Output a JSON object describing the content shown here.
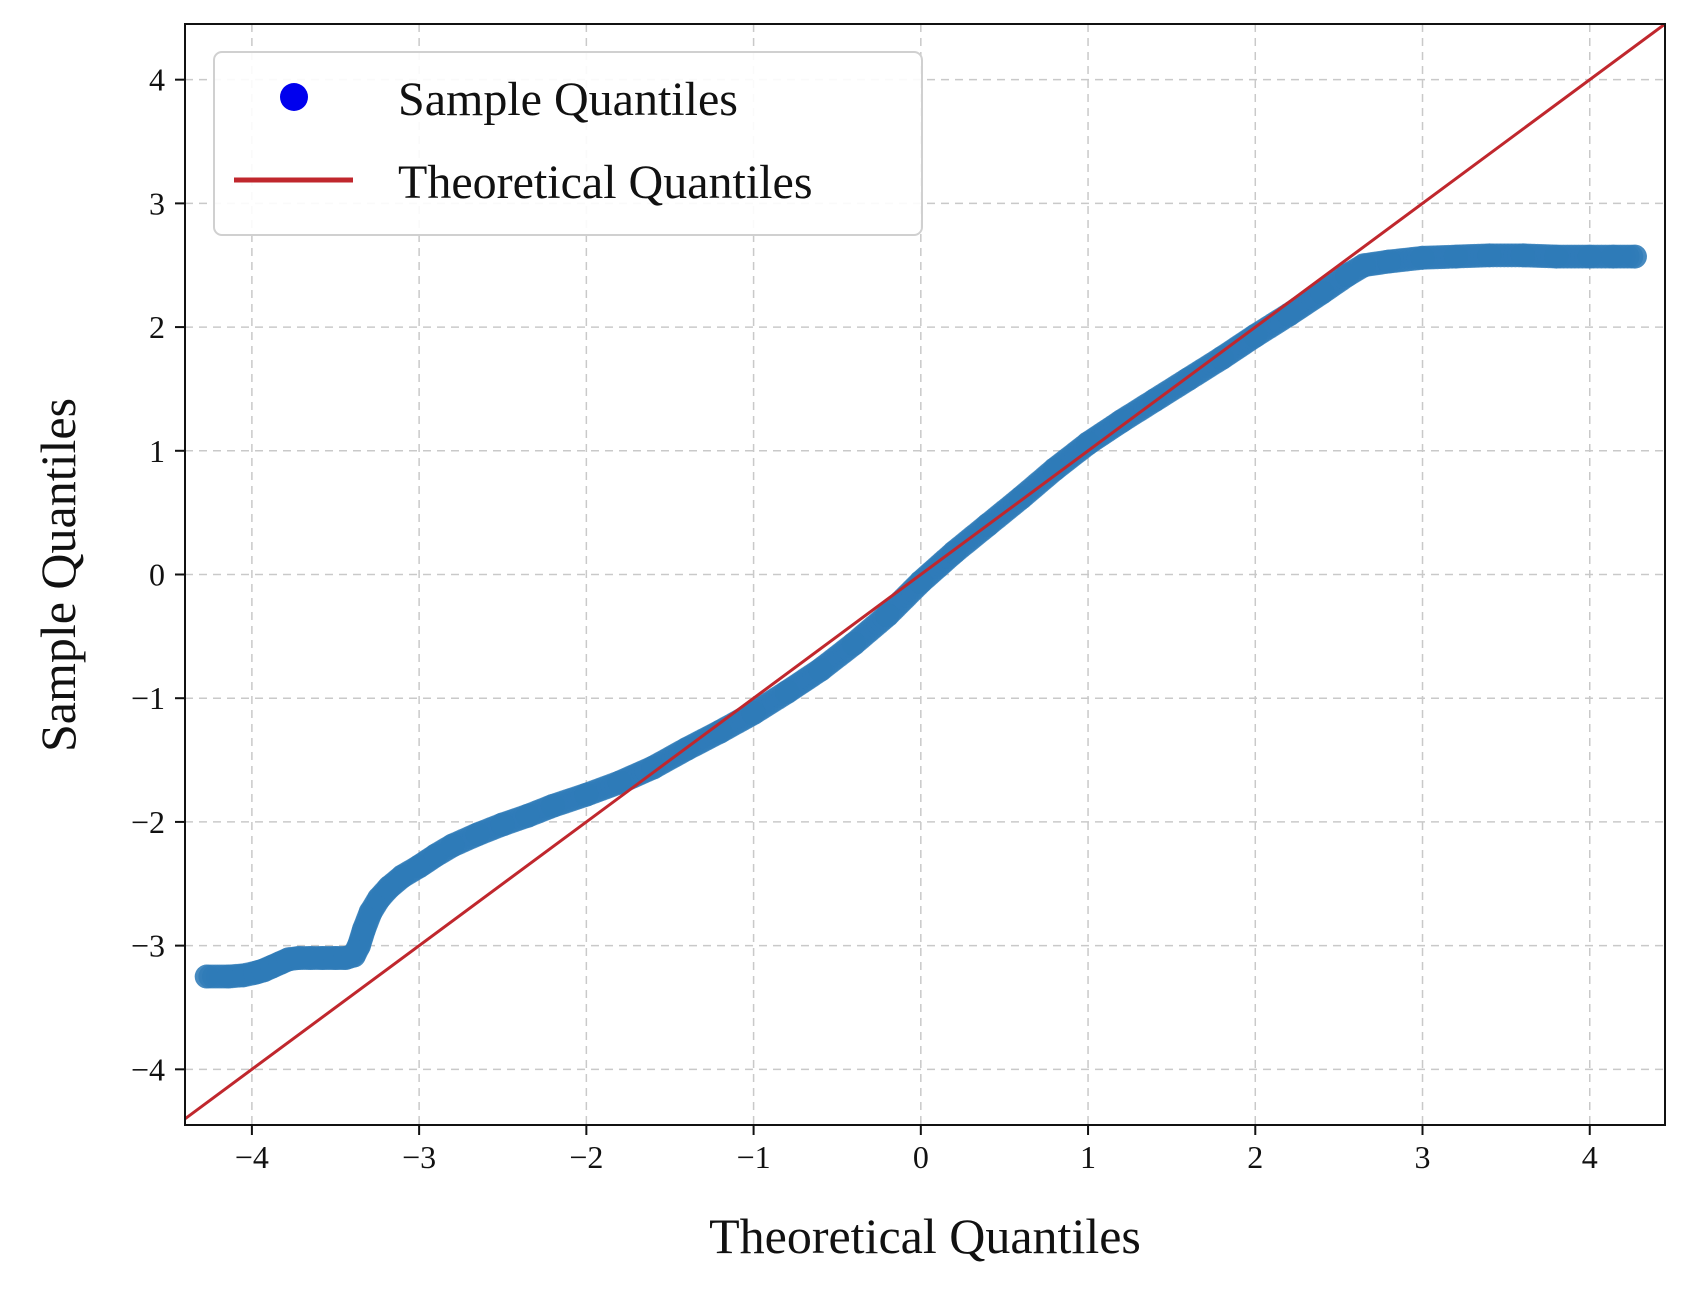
{
  "chart_data": {
    "type": "scatter",
    "title": "",
    "xlabel": "Theoretical Quantiles",
    "ylabel": "Sample Quantiles",
    "xlim": [
      -4.4,
      4.45
    ],
    "ylim": [
      -4.45,
      4.45
    ],
    "grid": true,
    "grid_style": "dashed",
    "legend_position": "upper-left",
    "x_ticks": [
      -4,
      -3,
      -2,
      -1,
      0,
      1,
      2,
      3,
      4
    ],
    "y_ticks": [
      -4,
      -3,
      -2,
      -1,
      0,
      1,
      2,
      3,
      4
    ],
    "x_tick_labels": [
      "−4",
      "−3",
      "−2",
      "−1",
      "0",
      "1",
      "2",
      "3",
      "4"
    ],
    "y_tick_labels": [
      "−4",
      "−3",
      "−2",
      "−1",
      "0",
      "1",
      "2",
      "3",
      "4"
    ],
    "legend": {
      "items": [
        {
          "label": "Sample Quantiles",
          "marker": "circle",
          "color": "#0000ee"
        },
        {
          "label": "Theoretical Quantiles",
          "marker": "line",
          "color": "#c0272d"
        }
      ]
    },
    "series": [
      {
        "name": "Sample Quantiles",
        "kind": "scatter",
        "color": "#2f7bb8",
        "points": [
          [
            -4.27,
            -3.25
          ],
          [
            -4.14,
            -3.25
          ],
          [
            -4.05,
            -3.24
          ],
          [
            -3.98,
            -3.22
          ],
          [
            -3.93,
            -3.2
          ],
          [
            -3.88,
            -3.17
          ],
          [
            -3.83,
            -3.14
          ],
          [
            -3.78,
            -3.11
          ],
          [
            -3.72,
            -3.1
          ],
          [
            -3.65,
            -3.1
          ],
          [
            -3.58,
            -3.1
          ],
          [
            -3.5,
            -3.1
          ],
          [
            -3.44,
            -3.1
          ],
          [
            -3.39,
            -3.08
          ],
          [
            -3.36,
            -3.0
          ],
          [
            -3.33,
            -2.87
          ],
          [
            -3.29,
            -2.73
          ],
          [
            -3.24,
            -2.62
          ],
          [
            -3.18,
            -2.53
          ],
          [
            -3.1,
            -2.44
          ],
          [
            -3.0,
            -2.36
          ],
          [
            -2.9,
            -2.27
          ],
          [
            -2.8,
            -2.19
          ],
          [
            -2.65,
            -2.1
          ],
          [
            -2.5,
            -2.02
          ],
          [
            -2.35,
            -1.95
          ],
          [
            -2.2,
            -1.87
          ],
          [
            -2.0,
            -1.78
          ],
          [
            -1.8,
            -1.68
          ],
          [
            -1.6,
            -1.56
          ],
          [
            -1.4,
            -1.41
          ],
          [
            -1.2,
            -1.27
          ],
          [
            -1.0,
            -1.12
          ],
          [
            -0.8,
            -0.95
          ],
          [
            -0.6,
            -0.77
          ],
          [
            -0.4,
            -0.56
          ],
          [
            -0.2,
            -0.33
          ],
          [
            0.0,
            -0.06
          ],
          [
            0.2,
            0.18
          ],
          [
            0.4,
            0.4
          ],
          [
            0.6,
            0.62
          ],
          [
            0.8,
            0.85
          ],
          [
            1.0,
            1.06
          ],
          [
            1.2,
            1.24
          ],
          [
            1.4,
            1.41
          ],
          [
            1.6,
            1.58
          ],
          [
            1.8,
            1.75
          ],
          [
            2.0,
            1.93
          ],
          [
            2.2,
            2.1
          ],
          [
            2.4,
            2.28
          ],
          [
            2.55,
            2.42
          ],
          [
            2.65,
            2.5
          ],
          [
            2.8,
            2.53
          ],
          [
            3.0,
            2.56
          ],
          [
            3.2,
            2.57
          ],
          [
            3.4,
            2.58
          ],
          [
            3.6,
            2.58
          ],
          [
            3.8,
            2.57
          ],
          [
            4.0,
            2.57
          ],
          [
            4.14,
            2.57
          ],
          [
            4.27,
            2.57
          ]
        ]
      },
      {
        "name": "Theoretical Quantiles",
        "kind": "line",
        "color": "#c0272d",
        "x": [
          -4.4,
          4.45
        ],
        "y": [
          -4.4,
          4.45
        ]
      }
    ]
  }
}
